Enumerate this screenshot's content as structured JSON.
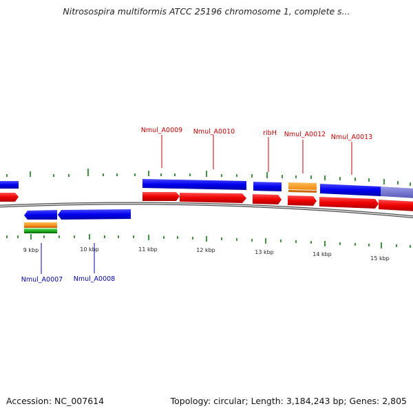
{
  "title": "Nitrosospira multiformis ATCC 25196 chromosome 1, complete s...",
  "footer": {
    "accession": "Accession: NC_007614",
    "summary": "Topology: circular; Length: 3,184,243 bp; Genes: 2,805"
  },
  "ruler_labels": [
    "9 kbp",
    "10 kbp",
    "11 kbp",
    "12 kbp",
    "13 kbp",
    "14 kbp",
    "15 kbp"
  ],
  "gene_labels_top": [
    "Nmul_A0009",
    "Nmul_A0010",
    "ribH",
    "Nmul_A0012",
    "Nmul_A0013"
  ],
  "gene_labels_bottom": [
    "Nmul_A0007",
    "Nmul_A0008"
  ],
  "colors": {
    "gene": "#0000ee",
    "cds": "#ee0000",
    "orange": "#ff9922",
    "green": "#22bb22",
    "lavender": "#7070d0",
    "tick": "#117711",
    "label_top": "#cc0000",
    "label_bottom": "#0000aa",
    "backbone": "#777777"
  }
}
